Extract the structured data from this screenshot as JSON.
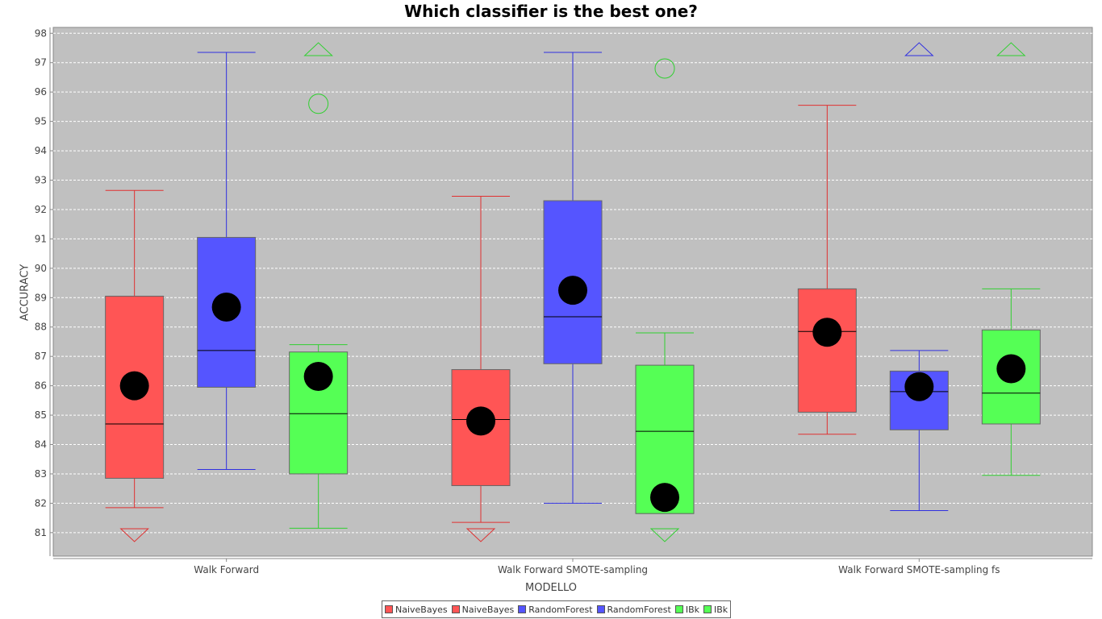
{
  "chart_data": {
    "type": "box",
    "title": "Which classifier is the best one?",
    "xlabel": "MODELLO",
    "ylabel": "ACCURACY",
    "ylim": [
      80.2,
      98.2
    ],
    "yticks": [
      81,
      82,
      83,
      84,
      85,
      86,
      87,
      88,
      89,
      90,
      91,
      92,
      93,
      94,
      95,
      96,
      97,
      98
    ],
    "grid": true,
    "legend_position": "bottom",
    "categories": [
      "Walk Forward",
      "Walk Forward SMOTE-sampling",
      "Walk Forward SMOTE-sampling fs"
    ],
    "legend": [
      {
        "label": "NaiveBayes",
        "color": "#ff5555"
      },
      {
        "label": "NaiveBayes",
        "color": "#ff5555"
      },
      {
        "label": "RandomForest",
        "color": "#5555ff"
      },
      {
        "label": "RandomForest",
        "color": "#5555ff"
      },
      {
        "label": "IBk",
        "color": "#55ff55"
      },
      {
        "label": "IBk",
        "color": "#55ff55"
      }
    ],
    "series": [
      {
        "name": "NaiveBayes",
        "fill": "#ff5555",
        "line": "#e03030",
        "boxes": [
          {
            "whisker_low": 81.85,
            "q1": 82.85,
            "median": 84.7,
            "q3": 89.05,
            "whisker_high": 92.65,
            "mean": 86.0,
            "outliers": [],
            "extreme_low": true,
            "extreme_high": false
          },
          {
            "whisker_low": 81.35,
            "q1": 82.6,
            "median": 84.85,
            "q3": 86.55,
            "whisker_high": 92.45,
            "mean": 84.8,
            "outliers": [],
            "extreme_low": true,
            "extreme_high": false
          },
          {
            "whisker_low": 84.35,
            "q1": 85.1,
            "median": 87.85,
            "q3": 89.3,
            "whisker_high": 95.55,
            "mean": 87.82,
            "outliers": [],
            "extreme_low": false,
            "extreme_high": false
          }
        ]
      },
      {
        "name": "RandomForest",
        "fill": "#5555ff",
        "line": "#3030e0",
        "boxes": [
          {
            "whisker_low": 83.15,
            "q1": 85.95,
            "median": 87.2,
            "q3": 91.05,
            "whisker_high": 97.35,
            "mean": 88.68,
            "outliers": [],
            "extreme_low": false,
            "extreme_high": false
          },
          {
            "whisker_low": 82.0,
            "q1": 86.75,
            "median": 88.35,
            "q3": 92.3,
            "whisker_high": 97.35,
            "mean": 89.25,
            "outliers": [],
            "extreme_low": false,
            "extreme_high": false
          },
          {
            "whisker_low": 81.75,
            "q1": 84.5,
            "median": 85.8,
            "q3": 86.5,
            "whisker_high": 87.2,
            "mean": 85.97,
            "outliers": [],
            "extreme_low": false,
            "extreme_high": true
          }
        ]
      },
      {
        "name": "IBk",
        "fill": "#55ff55",
        "line": "#30d030",
        "boxes": [
          {
            "whisker_low": 81.15,
            "q1": 83.0,
            "median": 85.05,
            "q3": 87.15,
            "whisker_high": 87.4,
            "mean": 86.32,
            "outliers": [
              95.6
            ],
            "extreme_low": false,
            "extreme_high": true
          },
          {
            "whisker_low": 81.65,
            "q1": 81.65,
            "median": 84.45,
            "q3": 86.7,
            "whisker_high": 87.8,
            "mean": 82.2,
            "outliers": [
              96.8
            ],
            "extreme_low": true,
            "extreme_high": false
          },
          {
            "whisker_low": 82.95,
            "q1": 84.7,
            "median": 85.75,
            "q3": 87.9,
            "whisker_high": 89.3,
            "mean": 86.58,
            "outliers": [],
            "extreme_low": false,
            "extreme_high": true
          }
        ]
      }
    ]
  }
}
